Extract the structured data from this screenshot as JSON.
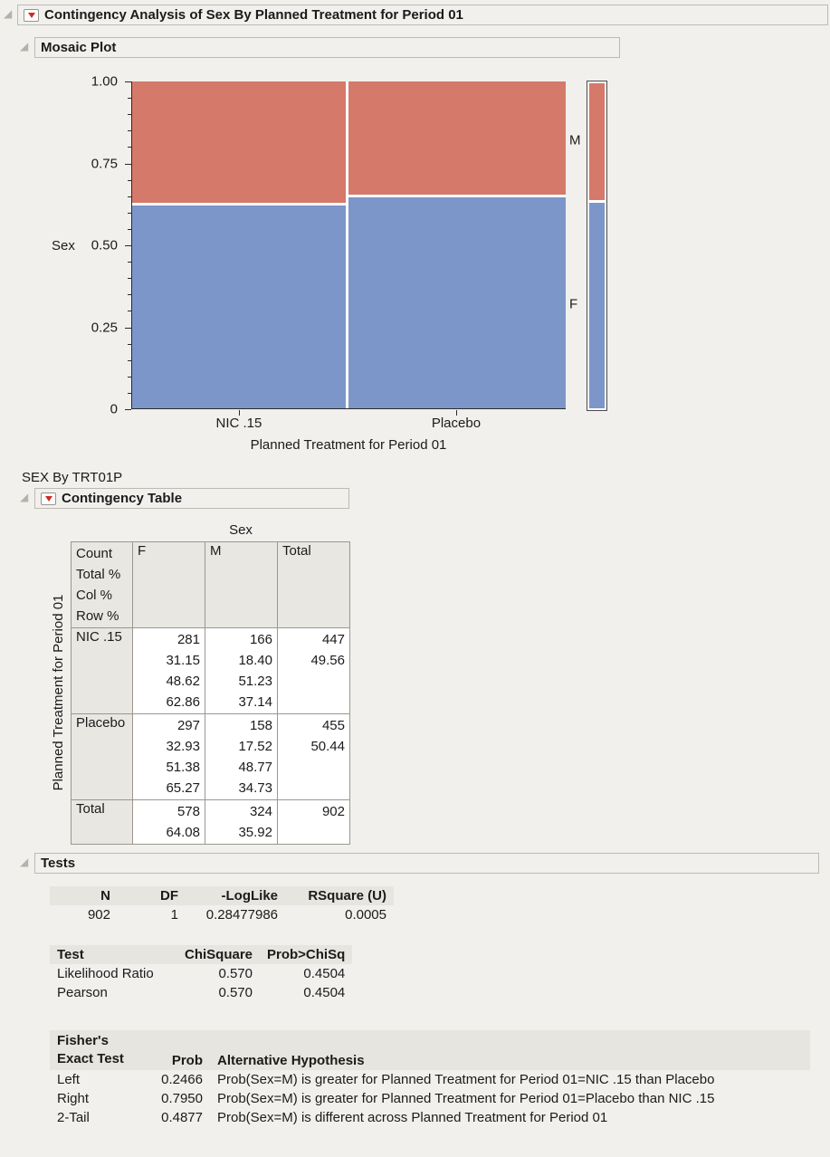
{
  "page": {
    "title": "Contingency Analysis of Sex By Planned Treatment for Period 01",
    "subtitle": "SEX By TRT01P"
  },
  "sections": {
    "mosaic": "Mosaic Plot",
    "contingency": "Contingency Table",
    "tests": "Tests"
  },
  "icons": {
    "disclosure": "disclosure-triangle",
    "red_triangle_menu": "red-triangle-menu",
    "red_triangle_color": "#cf2a22"
  },
  "chart_data": {
    "type": "mosaic",
    "title": "Mosaic Plot",
    "xlabel": "Planned Treatment for Period 01",
    "ylabel": "Sex",
    "yticks": [
      "1.00",
      "0.75",
      "0.50",
      "0.25",
      "0"
    ],
    "ylim": [
      0,
      1
    ],
    "categories": [
      "NIC .15",
      "Placebo"
    ],
    "column_widths_pct": [
      49.56,
      50.44
    ],
    "series": [
      {
        "name": "F",
        "color": "#7d96c9",
        "values_pct": [
          62.86,
          65.27
        ]
      },
      {
        "name": "M",
        "color": "#d5796a",
        "values_pct": [
          37.14,
          34.73
        ]
      }
    ],
    "summary_bar": {
      "M": 35.92,
      "F": 64.08
    }
  },
  "contingency_table": {
    "col_group_label": "Sex",
    "row_group_label": "Planned Treatment for Period 01",
    "stat_labels": [
      "Count",
      "Total %",
      "Col %",
      "Row %"
    ],
    "col_headers": [
      "F",
      "M",
      "Total"
    ],
    "rows": [
      {
        "label": "NIC .15",
        "F": [
          "281",
          "31.15",
          "48.62",
          "62.86"
        ],
        "M": [
          "166",
          "18.40",
          "51.23",
          "37.14"
        ],
        "Total": [
          "447",
          "49.56",
          "",
          ""
        ]
      },
      {
        "label": "Placebo",
        "F": [
          "297",
          "32.93",
          "51.38",
          "65.27"
        ],
        "M": [
          "158",
          "17.52",
          "48.77",
          "34.73"
        ],
        "Total": [
          "455",
          "50.44",
          "",
          ""
        ]
      },
      {
        "label": "Total",
        "F": [
          "578",
          "64.08"
        ],
        "M": [
          "324",
          "35.92"
        ],
        "Total": [
          "902",
          ""
        ]
      }
    ]
  },
  "tests": {
    "summary": {
      "headers": [
        "N",
        "DF",
        "-LogLike",
        "RSquare (U)"
      ],
      "values": [
        "902",
        "1",
        "0.28477986",
        "0.0005"
      ]
    },
    "chisq": {
      "headers": [
        "Test",
        "ChiSquare",
        "Prob>ChiSq"
      ],
      "rows": [
        [
          "Likelihood Ratio",
          "0.570",
          "0.4504"
        ],
        [
          "Pearson",
          "0.570",
          "0.4504"
        ]
      ]
    },
    "fisher": {
      "header_test_line1": "Fisher's",
      "header_test_line2": "Exact Test",
      "header_prob": "Prob",
      "header_alt": "Alternative Hypothesis",
      "rows": [
        [
          "Left",
          "0.2466",
          "Prob(Sex=M) is greater for Planned Treatment for Period 01=NIC .15 than Placebo"
        ],
        [
          "Right",
          "0.7950",
          "Prob(Sex=M) is greater for Planned Treatment for Period 01=Placebo than NIC .15"
        ],
        [
          "2-Tail",
          "0.4877",
          "Prob(Sex=M) is different across Planned Treatment for Period 01"
        ]
      ]
    }
  }
}
